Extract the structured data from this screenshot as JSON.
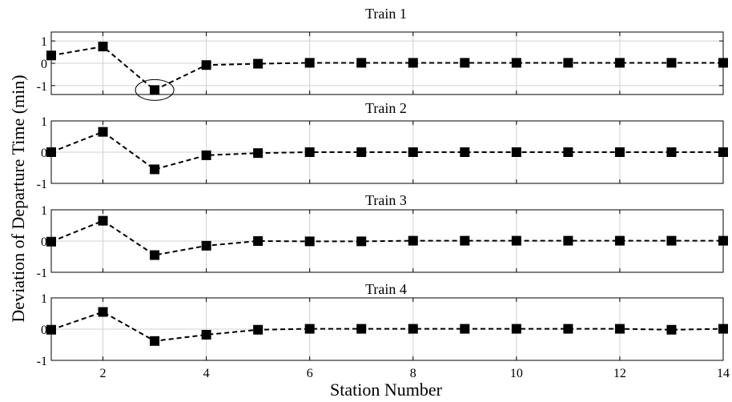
{
  "chart_data": {
    "type": "line",
    "ylabel": "Deviation of Departure Time (min)",
    "xlabel": "Station Number",
    "x": [
      1,
      2,
      3,
      4,
      5,
      6,
      7,
      8,
      9,
      10,
      11,
      12,
      13,
      14
    ],
    "xlim": [
      1,
      14
    ],
    "xticks": [
      2,
      4,
      6,
      8,
      10,
      12,
      14
    ],
    "grid": true,
    "line_style": "dashed",
    "marker": "square",
    "line_color": "#000000",
    "subplots": [
      {
        "title": "Train 1",
        "ylim": [
          -1.4,
          1.4
        ],
        "yticks": [
          -1,
          0,
          1
        ],
        "values": [
          0.35,
          0.75,
          -1.2,
          -0.08,
          -0.02,
          0.02,
          0.02,
          0.02,
          0.02,
          0.02,
          0.02,
          0.02,
          0.02,
          0.02
        ],
        "highlight_station": 3
      },
      {
        "title": "Train 2",
        "ylim": [
          -1,
          1
        ],
        "yticks": [
          -1,
          0,
          1
        ],
        "values": [
          0.0,
          0.65,
          -0.55,
          -0.1,
          -0.03,
          0.0,
          0.0,
          0.0,
          0.0,
          0.0,
          0.0,
          0.0,
          0.0,
          0.0
        ]
      },
      {
        "title": "Train 3",
        "ylim": [
          -1,
          1
        ],
        "yticks": [
          -1,
          0,
          1
        ],
        "values": [
          -0.02,
          0.65,
          -0.45,
          -0.15,
          0.0,
          -0.01,
          -0.01,
          0.01,
          0.01,
          0.01,
          0.01,
          0.01,
          0.01,
          0.01
        ]
      },
      {
        "title": "Train 4",
        "ylim": [
          -1,
          1
        ],
        "yticks": [
          -1,
          0,
          1
        ],
        "values": [
          -0.02,
          0.55,
          -0.38,
          -0.18,
          -0.02,
          0.01,
          0.01,
          0.01,
          0.01,
          0.01,
          0.01,
          0.01,
          -0.02,
          0.01
        ]
      }
    ]
  }
}
